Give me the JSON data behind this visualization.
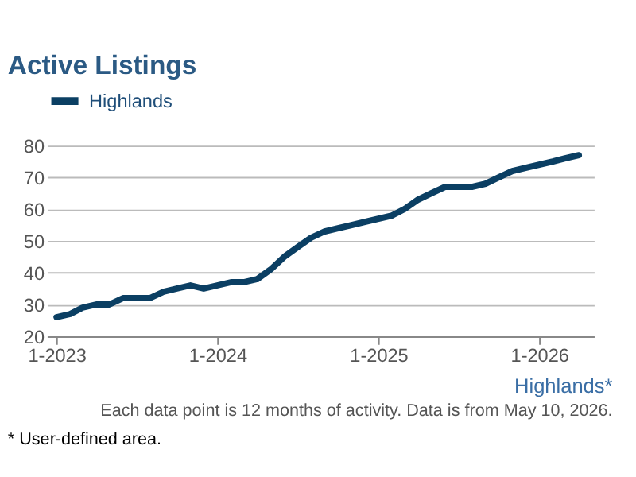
{
  "chart_data": {
    "type": "line",
    "title": "Active Listings",
    "x": [
      "2023-01",
      "2023-02",
      "2023-03",
      "2023-04",
      "2023-05",
      "2023-06",
      "2023-07",
      "2023-08",
      "2023-09",
      "2023-10",
      "2023-11",
      "2023-12",
      "2024-01",
      "2024-02",
      "2024-03",
      "2024-04",
      "2024-05",
      "2024-06",
      "2024-07",
      "2024-08",
      "2024-09",
      "2024-10",
      "2024-11",
      "2024-12",
      "2025-01",
      "2025-02",
      "2025-03",
      "2025-04",
      "2025-05",
      "2025-06",
      "2025-07",
      "2025-08",
      "2025-09",
      "2025-10",
      "2025-11",
      "2025-12",
      "2026-01",
      "2026-02",
      "2026-03",
      "2026-04"
    ],
    "series": [
      {
        "name": "Highlands",
        "color": "#0b3f63",
        "values": [
          26,
          27,
          29,
          30,
          30,
          32,
          32,
          32,
          34,
          35,
          36,
          35,
          36,
          37,
          37,
          38,
          41,
          45,
          48,
          51,
          53,
          54,
          55,
          56,
          57,
          58,
          60,
          63,
          65,
          67,
          67,
          67,
          68,
          70,
          72,
          73,
          74,
          75,
          76,
          77
        ]
      }
    ],
    "xlim": [
      "2022-12-10",
      "2026-05-05"
    ],
    "xticks": [
      {
        "value": "2023-01",
        "label": "1-2023"
      },
      {
        "value": "2024-01",
        "label": "1-2024"
      },
      {
        "value": "2025-01",
        "label": "1-2025"
      },
      {
        "value": "2026-01",
        "label": "1-2026"
      }
    ],
    "ylim": [
      20,
      80
    ],
    "yticks": [
      20,
      30,
      40,
      50,
      60,
      70,
      80
    ],
    "grid": "y",
    "legend": "top",
    "line_style": "solid",
    "marker": "none",
    "annotations": [
      "Highlands*",
      "Each data point is 12 months of activity. Data is from May 10, 2026.",
      "* User-defined area."
    ]
  }
}
